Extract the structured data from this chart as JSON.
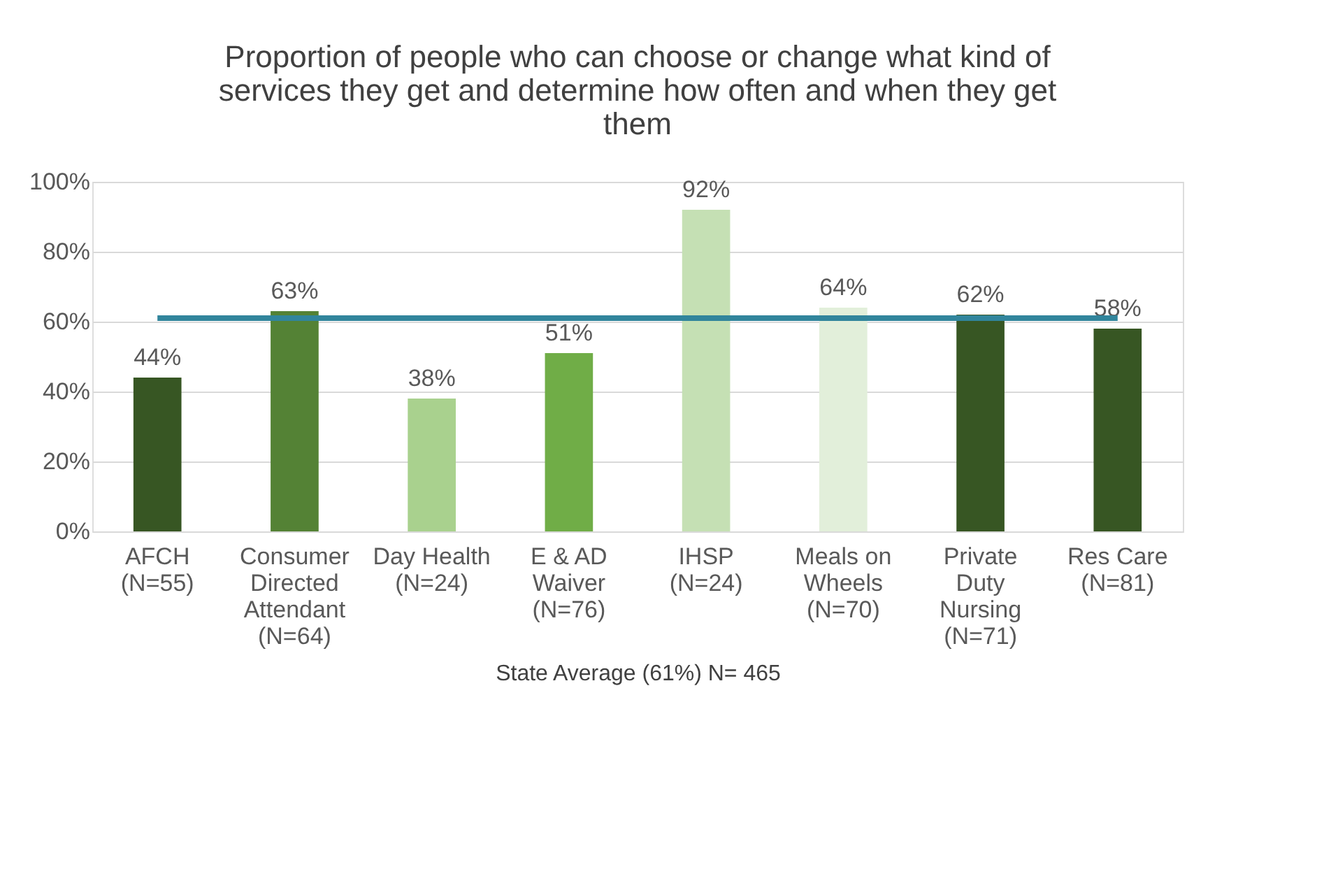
{
  "chart_data": {
    "type": "bar",
    "title": "Proportion of people who can choose or change what kind of services they get and determine how often and when they get them",
    "xlabel": "State Average (61%) N= 465",
    "categories": [
      "AFCH (N=55)",
      "Consumer Directed Attendant (N=64)",
      "Day Health (N=24)",
      "E & AD Waiver (N=76)",
      "IHSP (N=24)",
      "Meals on Wheels (N=70)",
      "Private Duty Nursing (N=71)",
      "Res Care (N=81)"
    ],
    "values": [
      44,
      63,
      38,
      51,
      92,
      64,
      62,
      58
    ],
    "colors": [
      "#375623",
      "#548235",
      "#a9d18e",
      "#70ad47",
      "#c5e0b4",
      "#e2efda",
      "#375623",
      "#375623"
    ],
    "value_labels": [
      "44%",
      "63%",
      "38%",
      "51%",
      "92%",
      "64%",
      "62%",
      "58%"
    ],
    "ylim": [
      0,
      100
    ],
    "yticks": [
      {
        "value": 0,
        "label": "0%"
      },
      {
        "value": 20,
        "label": "20%"
      },
      {
        "value": 40,
        "label": "40%"
      },
      {
        "value": 60,
        "label": "60%"
      },
      {
        "value": 80,
        "label": "80%"
      },
      {
        "value": 100,
        "label": "100%"
      }
    ],
    "ref_lines": [
      {
        "axis": "y",
        "value": 61,
        "label": null,
        "color": "#31859c"
      }
    ],
    "grid": "y"
  }
}
